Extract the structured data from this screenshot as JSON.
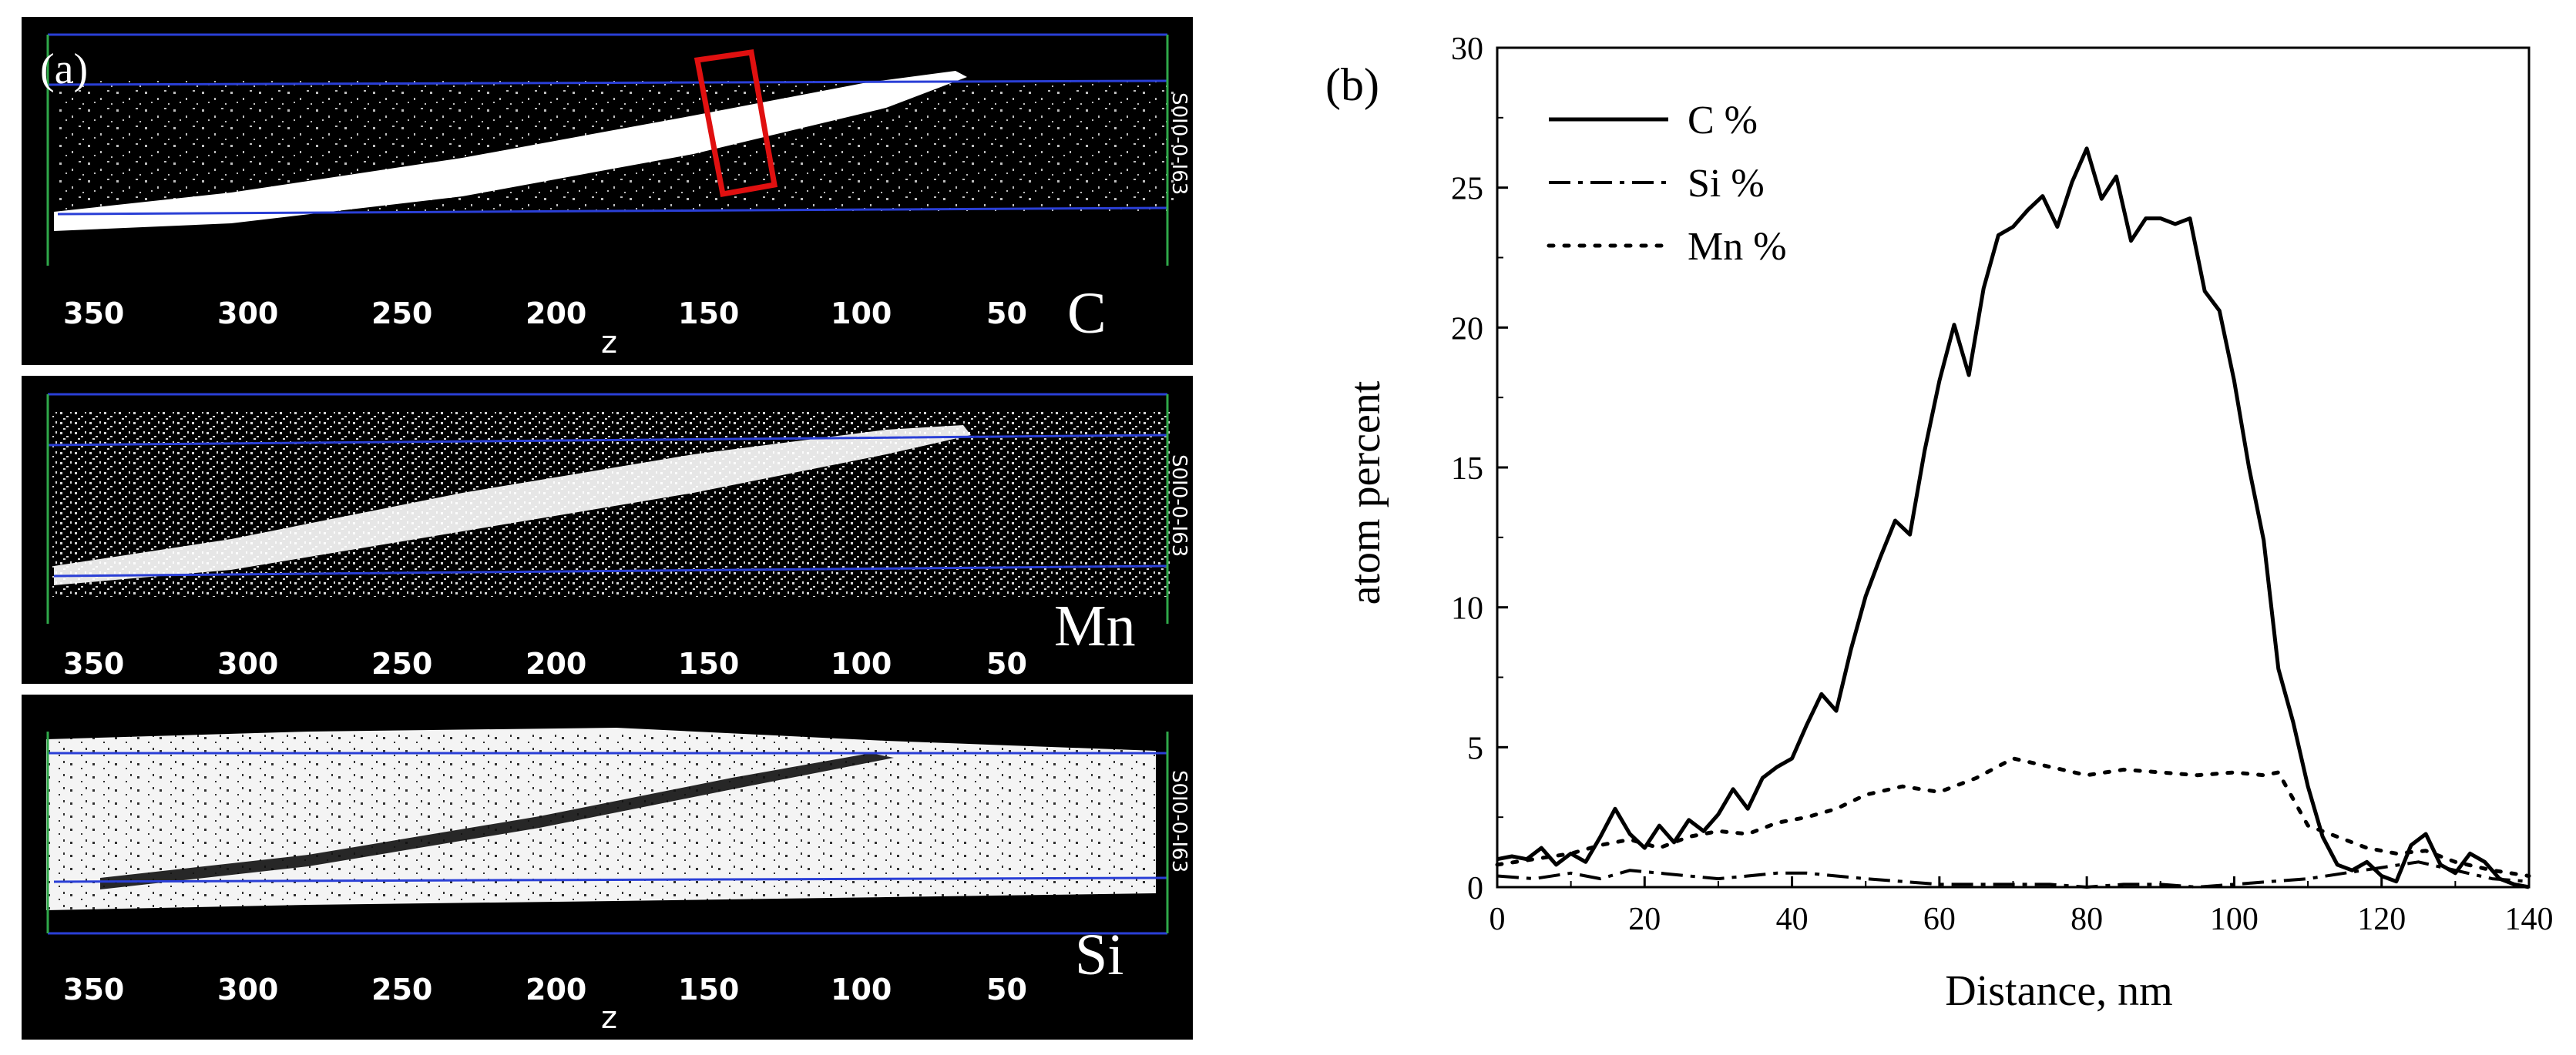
{
  "panel_a": {
    "label": "(a)",
    "axis_label": "z",
    "side_label": "S0I0-0-I63",
    "tick_labels": [
      "350",
      "300",
      "250",
      "200",
      "150",
      "100",
      "50"
    ],
    "maps": [
      {
        "element": "C",
        "style": "bright-band"
      },
      {
        "element": "Mn",
        "style": "depleted-band"
      },
      {
        "element": "Si",
        "style": "dark-band"
      }
    ]
  },
  "panel_b": {
    "label": "(b)"
  },
  "chart_data": {
    "type": "line",
    "title": "",
    "xlabel": "Distance, nm",
    "ylabel": "atom percent",
    "xlim": [
      0,
      140
    ],
    "ylim": [
      0,
      30
    ],
    "xticks": [
      0,
      20,
      40,
      60,
      80,
      100,
      120,
      140
    ],
    "yticks": [
      0,
      5,
      10,
      15,
      20,
      25,
      30
    ],
    "legend_position": "top-left",
    "series": [
      {
        "name": "C %",
        "style": "solid",
        "x": [
          0,
          2,
          4,
          6,
          8,
          10,
          12,
          14,
          16,
          18,
          20,
          22,
          24,
          26,
          28,
          30,
          32,
          34,
          36,
          38,
          40,
          42,
          44,
          46,
          48,
          50,
          52,
          54,
          56,
          58,
          60,
          62,
          64,
          66,
          68,
          70,
          72,
          74,
          76,
          78,
          80,
          82,
          84,
          86,
          88,
          90,
          92,
          94,
          96,
          98,
          100,
          102,
          104,
          106,
          108,
          110,
          112,
          114,
          116,
          118,
          120,
          122,
          124,
          126,
          128,
          130,
          132,
          134,
          136,
          138,
          140
        ],
        "y": [
          1.0,
          1.1,
          1.0,
          1.4,
          0.8,
          1.2,
          0.9,
          1.8,
          2.8,
          1.9,
          1.4,
          2.2,
          1.6,
          2.4,
          2.0,
          2.6,
          3.5,
          2.8,
          3.9,
          4.3,
          4.6,
          5.8,
          6.9,
          6.3,
          8.5,
          10.4,
          11.8,
          13.1,
          12.6,
          15.6,
          18.1,
          20.1,
          18.3,
          21.4,
          23.3,
          23.6,
          24.2,
          24.7,
          23.6,
          25.2,
          26.4,
          24.6,
          25.4,
          23.1,
          23.9,
          23.9,
          23.7,
          23.9,
          21.3,
          20.6,
          18.1,
          15.0,
          12.4,
          7.8,
          5.9,
          3.6,
          1.8,
          0.8,
          0.6,
          0.9,
          0.4,
          0.2,
          1.5,
          1.9,
          0.8,
          0.5,
          1.2,
          0.9,
          0.3,
          0.1,
          0.0
        ],
        "x_note": "series x/y pairs"
      },
      {
        "name": "Si %",
        "style": "dashdot",
        "x": [
          0,
          5,
          10,
          14,
          18,
          22,
          26,
          30,
          34,
          38,
          42,
          46,
          50,
          55,
          60,
          65,
          70,
          75,
          80,
          85,
          90,
          95,
          100,
          105,
          110,
          115,
          120,
          125,
          130,
          135,
          140
        ],
        "y": [
          0.4,
          0.3,
          0.5,
          0.3,
          0.6,
          0.5,
          0.4,
          0.3,
          0.4,
          0.5,
          0.5,
          0.4,
          0.3,
          0.2,
          0.1,
          0.1,
          0.1,
          0.1,
          0.0,
          0.1,
          0.1,
          0.0,
          0.1,
          0.2,
          0.3,
          0.5,
          0.7,
          0.9,
          0.6,
          0.3,
          0.2
        ]
      },
      {
        "name": "Mn %",
        "style": "dotted",
        "x": [
          0,
          5,
          10,
          14,
          18,
          22,
          26,
          30,
          34,
          38,
          42,
          46,
          50,
          55,
          60,
          65,
          70,
          75,
          80,
          85,
          90,
          95,
          100,
          104,
          106,
          110,
          114,
          118,
          122,
          126,
          130,
          135,
          140
        ],
        "y": [
          0.8,
          1.0,
          1.2,
          1.5,
          1.7,
          1.4,
          1.8,
          2.0,
          1.9,
          2.3,
          2.5,
          2.8,
          3.3,
          3.6,
          3.4,
          3.9,
          4.6,
          4.3,
          4.0,
          4.2,
          4.1,
          4.0,
          4.1,
          4.0,
          4.1,
          2.2,
          1.8,
          1.4,
          1.2,
          1.3,
          0.9,
          0.6,
          0.4
        ]
      }
    ]
  }
}
